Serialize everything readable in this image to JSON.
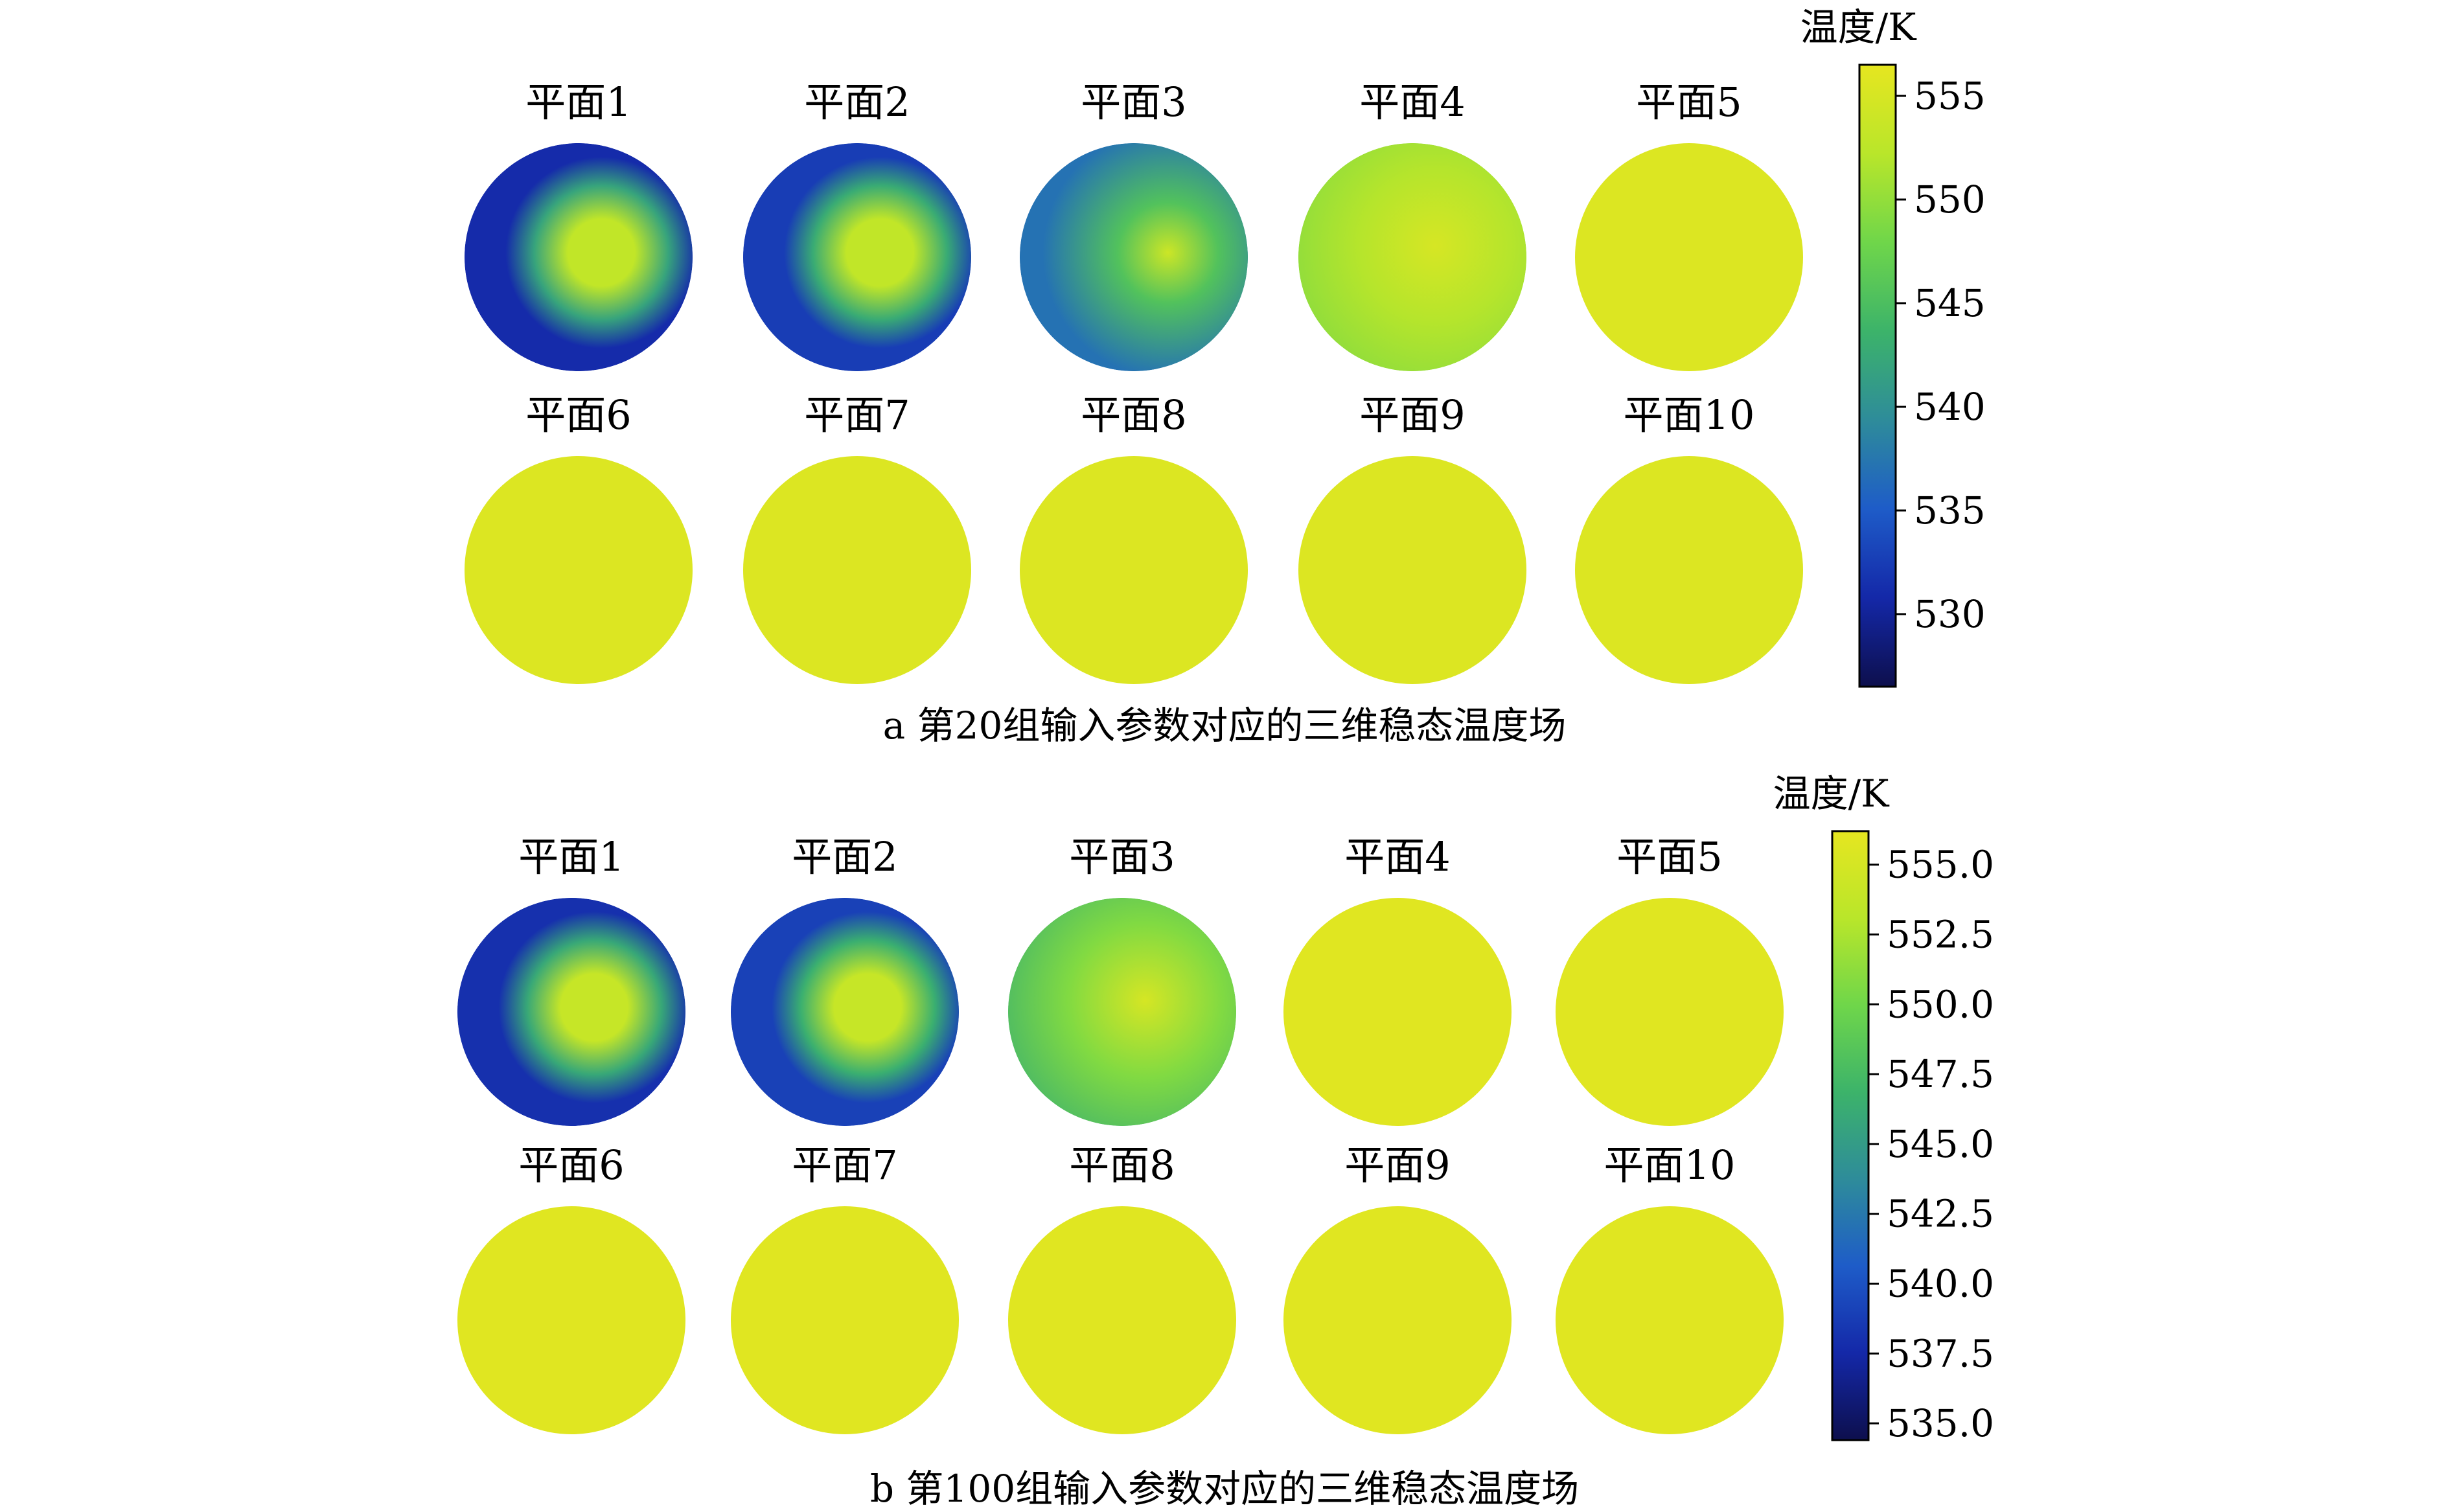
{
  "chart_data": [
    {
      "type": "heatmap",
      "caption": "a  第20组输入参数对应的三维稳态温度场",
      "colorbar": {
        "label": "温度/K",
        "ticks": [
          "555",
          "550",
          "545",
          "540",
          "535",
          "530"
        ],
        "tick_values": [
          555,
          550,
          545,
          540,
          535,
          530
        ],
        "range": [
          526.5,
          556.5
        ]
      },
      "panels": [
        {
          "title": "平面1",
          "pattern": "center-hot",
          "base_value": 531,
          "peak_value": 553
        },
        {
          "title": "平面2",
          "pattern": "center-hot",
          "base_value": 532.5,
          "peak_value": 553
        },
        {
          "title": "平面3",
          "pattern": "half-hot",
          "base_value": 537,
          "peak_value": 554
        },
        {
          "title": "平面4",
          "pattern": "mostly-hot",
          "base_value": 549,
          "peak_value": 555
        },
        {
          "title": "平面5",
          "pattern": "uniform",
          "base_value": 555.5,
          "peak_value": 555.5
        },
        {
          "title": "平面6",
          "pattern": "uniform",
          "base_value": 555.5,
          "peak_value": 555.5
        },
        {
          "title": "平面7",
          "pattern": "uniform",
          "base_value": 555.5,
          "peak_value": 555.5
        },
        {
          "title": "平面8",
          "pattern": "uniform",
          "base_value": 555.5,
          "peak_value": 555.5
        },
        {
          "title": "平面9",
          "pattern": "uniform",
          "base_value": 555.5,
          "peak_value": 555.5
        },
        {
          "title": "平面10",
          "pattern": "uniform",
          "base_value": 555.5,
          "peak_value": 555.5
        }
      ]
    },
    {
      "type": "heatmap",
      "caption": "b  第100组输入参数对应的三维稳态温度场",
      "colorbar": {
        "label": "温度/K",
        "ticks": [
          "555.0",
          "552.5",
          "550.0",
          "547.5",
          "545.0",
          "542.5",
          "540.0",
          "537.5",
          "535.0"
        ],
        "tick_values": [
          555.0,
          552.5,
          550.0,
          547.5,
          545.0,
          542.5,
          540.0,
          537.5,
          535.0
        ],
        "range": [
          534.4,
          556.2
        ]
      },
      "panels": [
        {
          "title": "平面1",
          "pattern": "center-hot",
          "base_value": 538,
          "peak_value": 554
        },
        {
          "title": "平面2",
          "pattern": "center-hot",
          "base_value": 539,
          "peak_value": 554
        },
        {
          "title": "平面3",
          "pattern": "mostly-hot",
          "base_value": 546.5,
          "peak_value": 555
        },
        {
          "title": "平面4",
          "pattern": "uniform",
          "base_value": 555.8,
          "peak_value": 555.8
        },
        {
          "title": "平面5",
          "pattern": "uniform",
          "base_value": 555.8,
          "peak_value": 555.8
        },
        {
          "title": "平面6",
          "pattern": "uniform",
          "base_value": 555.8,
          "peak_value": 555.8
        },
        {
          "title": "平面7",
          "pattern": "uniform",
          "base_value": 555.8,
          "peak_value": 555.8
        },
        {
          "title": "平面8",
          "pattern": "uniform",
          "base_value": 555.8,
          "peak_value": 555.8
        },
        {
          "title": "平面9",
          "pattern": "uniform",
          "base_value": 555.8,
          "peak_value": 555.8
        },
        {
          "title": "平面10",
          "pattern": "uniform",
          "base_value": 555.8,
          "peak_value": 555.8
        }
      ]
    }
  ],
  "colormap": {
    "name": "viridis-like",
    "stops": [
      "#0d0f4d",
      "#1428a8",
      "#1e5cc8",
      "#2e8c9a",
      "#3cb36a",
      "#6fd64a",
      "#b9e62a",
      "#e6e620"
    ]
  }
}
